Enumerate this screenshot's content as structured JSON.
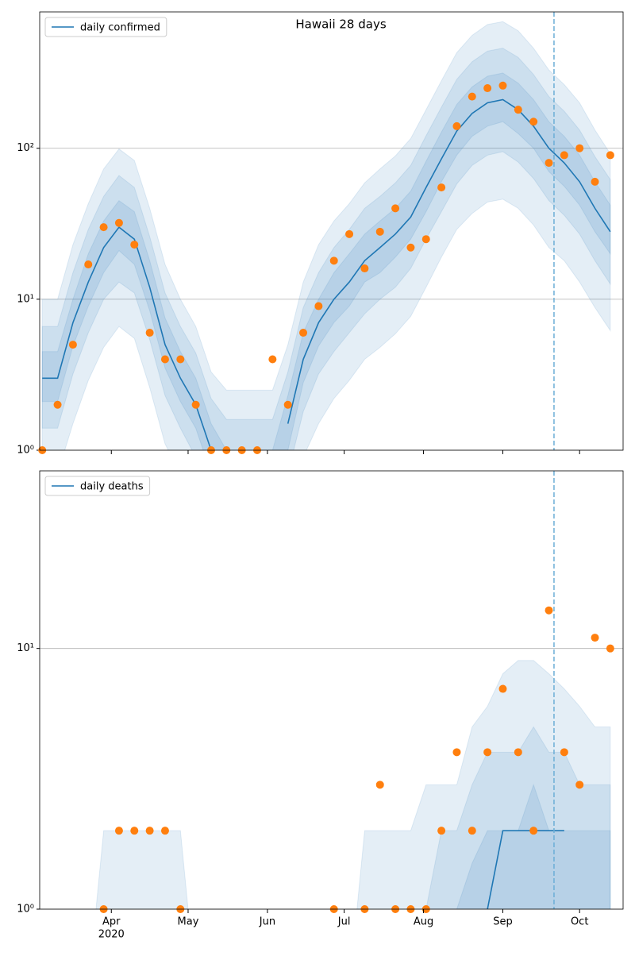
{
  "chart_data": [
    {
      "type": "line",
      "title": "Hawaii 28 days",
      "x": [
        4,
        10,
        16,
        22,
        28,
        34,
        40,
        46,
        52,
        58,
        64,
        70,
        76,
        82,
        88,
        94,
        100,
        106,
        112,
        118,
        124,
        130,
        136,
        142,
        148,
        154,
        160,
        166,
        172,
        178,
        184,
        190,
        196,
        202,
        208,
        214,
        220,
        226
      ],
      "xlim": [
        3,
        231
      ],
      "xticks": [
        31,
        61,
        92,
        122,
        153,
        184,
        214
      ],
      "ylim": [
        1,
        800
      ],
      "log_y": true,
      "yticks": [
        {
          "value": 1,
          "label": "10⁰"
        },
        {
          "value": 10,
          "label": "10¹"
        },
        {
          "value": 100,
          "label": "10²"
        }
      ],
      "grid": true,
      "legend": "upper left",
      "series": [
        {
          "name": "daily confirmed",
          "color": "#1f77b4",
          "values": [
            3,
            3,
            7,
            13,
            22,
            30,
            25,
            12,
            5,
            3,
            2,
            1,
            null,
            null,
            null,
            null,
            1.5,
            4,
            7,
            10,
            13,
            18,
            22,
            27,
            35,
            55,
            85,
            130,
            170,
            200,
            210,
            180,
            140,
            100,
            80,
            60,
            40,
            28
          ]
        }
      ],
      "observed": {
        "color": "#ff7f0e",
        "values": [
          1,
          2,
          5,
          17,
          30,
          32,
          23,
          6,
          4,
          4,
          2,
          1,
          1,
          1,
          1,
          4,
          2,
          6,
          9,
          18,
          27,
          16,
          28,
          40,
          22,
          25,
          55,
          140,
          220,
          250,
          260,
          180,
          150,
          80,
          90,
          100,
          60,
          90
        ]
      },
      "band_color": "#1f77b4",
      "bands": [
        {
          "lower": [
            0.7,
            0.7,
            1.5,
            2.9,
            4.8,
            6.6,
            5.5,
            2.6,
            1.1,
            0.7,
            0.4,
            0.2,
            0.15,
            0.15,
            0.15,
            0.15,
            0.3,
            0.9,
            1.5,
            2.2,
            2.9,
            4,
            4.8,
            5.9,
            7.7,
            12,
            19,
            29,
            37,
            44,
            46,
            40,
            31,
            22,
            18,
            13,
            8.8,
            6.2
          ],
          "upper": [
            10,
            10,
            23,
            43,
            73,
            99,
            83,
            40,
            17,
            10,
            6.6,
            3.3,
            2.5,
            2.5,
            2.5,
            2.5,
            5,
            13,
            23,
            33,
            43,
            59,
            73,
            89,
            116,
            180,
            280,
            430,
            560,
            660,
            690,
            600,
            460,
            330,
            264,
            200,
            132,
            92
          ]
        },
        {
          "lower": [
            1.4,
            1.4,
            3.2,
            6,
            10,
            13,
            11,
            5.4,
            2.3,
            1.4,
            0.9,
            0.45,
            0.3,
            0.3,
            0.3,
            0.3,
            0.7,
            1.8,
            3.2,
            4.5,
            6,
            8,
            10,
            12,
            16,
            25,
            38,
            58,
            77,
            90,
            95,
            81,
            63,
            45,
            36,
            27,
            18,
            12.6
          ],
          "upper": [
            6.6,
            6.6,
            15,
            29,
            48,
            66,
            55,
            26,
            11,
            6.6,
            4.4,
            2.2,
            1.6,
            1.6,
            1.6,
            1.6,
            3.3,
            8.8,
            15,
            22,
            29,
            40,
            48,
            59,
            77,
            121,
            187,
            286,
            374,
            440,
            460,
            400,
            308,
            220,
            176,
            132,
            88,
            62
          ]
        },
        {
          "lower": [
            2.1,
            2.1,
            4.9,
            9,
            15,
            21,
            17,
            8.4,
            3.5,
            2.1,
            1.4,
            0.7,
            0.5,
            0.5,
            0.5,
            0.5,
            1,
            2.8,
            4.9,
            7,
            9,
            13,
            15,
            19,
            25,
            38,
            60,
            90,
            120,
            140,
            150,
            125,
            100,
            70,
            56,
            42,
            28,
            20
          ],
          "upper": [
            4.5,
            4.5,
            10,
            20,
            33,
            45,
            38,
            18,
            7.5,
            4.5,
            3,
            1.5,
            1,
            1,
            1,
            1,
            2.3,
            6,
            10,
            15,
            20,
            27,
            33,
            40,
            52,
            82,
            128,
            195,
            255,
            300,
            315,
            270,
            210,
            150,
            120,
            90,
            60,
            42
          ]
        }
      ],
      "vline": 204,
      "vline_color": "#6baed6"
    },
    {
      "type": "line",
      "x": [
        4,
        10,
        16,
        22,
        28,
        34,
        40,
        46,
        52,
        58,
        64,
        70,
        76,
        82,
        88,
        94,
        100,
        106,
        112,
        118,
        124,
        130,
        136,
        142,
        148,
        154,
        160,
        166,
        172,
        178,
        184,
        190,
        196,
        202,
        208,
        214,
        220,
        226
      ],
      "xlim": [
        3,
        231
      ],
      "xticks": [
        {
          "value": 31,
          "label": "Apr"
        },
        {
          "value": 61,
          "label": "May"
        },
        {
          "value": 92,
          "label": "Jun"
        },
        {
          "value": 122,
          "label": "Jul"
        },
        {
          "value": 153,
          "label": "Aug"
        },
        {
          "value": 184,
          "label": "Sep"
        },
        {
          "value": 214,
          "label": "Oct"
        }
      ],
      "year_label": "2020",
      "ylim": [
        1,
        48
      ],
      "log_y": true,
      "yticks": [
        {
          "value": 1,
          "label": "10⁰"
        },
        {
          "value": 10,
          "label": "10¹"
        }
      ],
      "grid": true,
      "legend": "upper left",
      "series": [
        {
          "name": "daily deaths",
          "color": "#1f77b4",
          "values": [
            null,
            null,
            null,
            null,
            null,
            null,
            null,
            null,
            null,
            null,
            null,
            null,
            null,
            null,
            null,
            null,
            null,
            null,
            null,
            null,
            null,
            null,
            null,
            null,
            null,
            null,
            null,
            null,
            null,
            1,
            2,
            2,
            2,
            2,
            2,
            null,
            null,
            null
          ]
        }
      ],
      "observed": {
        "color": "#ff7f0e",
        "values": [
          null,
          null,
          null,
          null,
          1,
          2,
          2,
          2,
          2,
          1,
          null,
          null,
          null,
          null,
          null,
          null,
          null,
          null,
          null,
          1,
          null,
          1,
          3,
          1,
          1,
          1,
          2,
          4,
          2,
          4,
          7,
          4,
          2,
          14,
          4,
          3,
          11,
          10
        ]
      },
      "band_color": "#1f77b4",
      "bands": [
        {
          "lower": [
            0.5,
            0.5,
            0.5,
            0.5,
            0.5,
            0.5,
            0.5,
            0.5,
            0.5,
            0.5,
            0.5,
            0.5,
            0.5,
            0.5,
            0.5,
            0.5,
            0.5,
            0.5,
            0.5,
            0.5,
            0.5,
            0.5,
            0.5,
            0.5,
            0.5,
            0.5,
            0.5,
            0.5,
            0.5,
            0.5,
            0.5,
            0.5,
            0.5,
            0.5,
            0.5,
            0.5,
            0.5,
            0.5
          ],
          "upper": [
            0.5,
            0.5,
            0.5,
            0.5,
            2,
            2,
            2,
            2,
            2,
            2,
            0.5,
            0.5,
            0.5,
            0.5,
            0.5,
            0.5,
            0.5,
            0.5,
            0.5,
            0.5,
            0.5,
            2,
            2,
            2,
            2,
            3,
            3,
            3,
            5,
            6,
            8,
            9,
            9,
            8,
            7,
            6,
            5,
            5
          ]
        },
        {
          "lower": [
            0.5,
            0.5,
            0.5,
            0.5,
            0.5,
            0.5,
            0.5,
            0.5,
            0.5,
            0.5,
            0.5,
            0.5,
            0.5,
            0.5,
            0.5,
            0.5,
            0.5,
            0.5,
            0.5,
            0.5,
            0.5,
            0.5,
            0.5,
            0.5,
            0.5,
            0.5,
            0.5,
            0.5,
            0.5,
            0.5,
            0.5,
            0.5,
            0.5,
            0.5,
            0.5,
            0.5,
            0.5,
            0.5
          ],
          "upper": [
            0.5,
            0.5,
            0.5,
            0.5,
            0.5,
            0.5,
            0.5,
            0.5,
            0.5,
            0.5,
            0.5,
            0.5,
            0.5,
            0.5,
            0.5,
            0.5,
            0.5,
            0.5,
            0.5,
            0.5,
            0.5,
            0.5,
            0.5,
            0.5,
            0.5,
            1,
            2,
            2,
            3,
            4,
            4,
            4,
            5,
            4,
            4,
            3,
            3,
            3
          ]
        },
        {
          "lower": [
            0.5,
            0.5,
            0.5,
            0.5,
            0.5,
            0.5,
            0.5,
            0.5,
            0.5,
            0.5,
            0.5,
            0.5,
            0.5,
            0.5,
            0.5,
            0.5,
            0.5,
            0.5,
            0.5,
            0.5,
            0.5,
            0.5,
            0.5,
            0.5,
            0.5,
            0.5,
            0.5,
            0.5,
            0.5,
            0.5,
            0.5,
            0.5,
            0.5,
            0.5,
            0.5,
            0.5,
            0.5,
            0.5
          ],
          "upper": [
            0.5,
            0.5,
            0.5,
            0.5,
            0.5,
            0.5,
            0.5,
            0.5,
            0.5,
            0.5,
            0.5,
            0.5,
            0.5,
            0.5,
            0.5,
            0.5,
            0.5,
            0.5,
            0.5,
            0.5,
            0.5,
            0.5,
            0.5,
            0.5,
            0.5,
            0.5,
            0.5,
            1,
            1.5,
            2,
            2,
            2,
            3,
            2,
            2,
            2,
            2,
            2
          ]
        }
      ],
      "vline": 204,
      "vline_color": "#6baed6"
    }
  ]
}
